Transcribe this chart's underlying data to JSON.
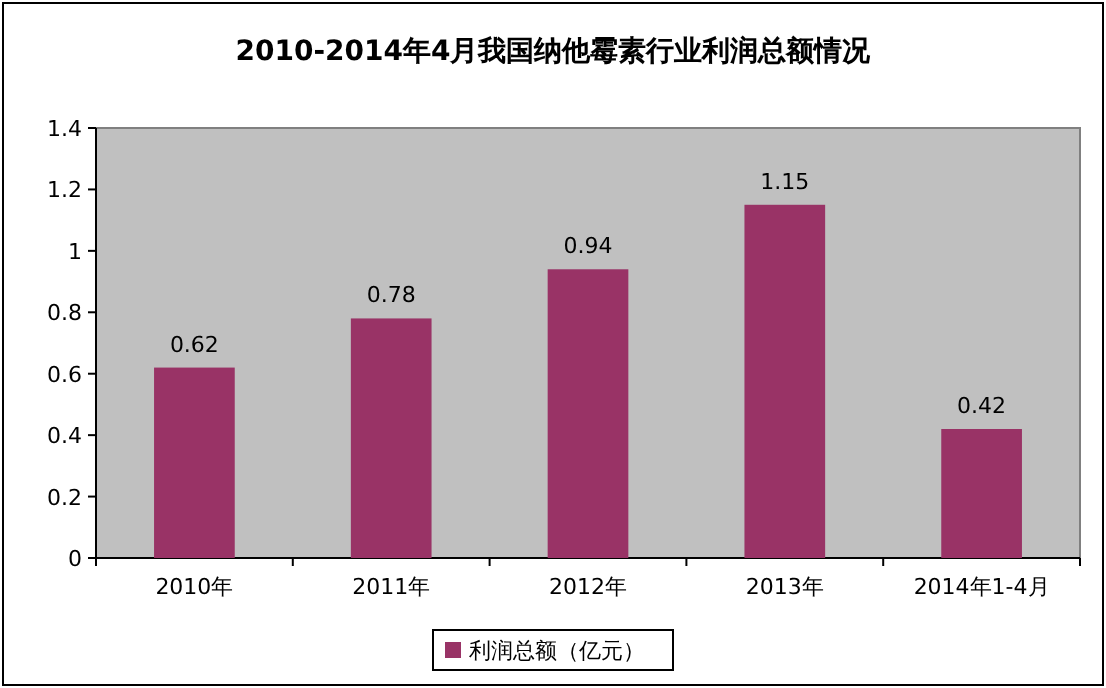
{
  "chart_data": {
    "type": "bar",
    "title": "2010-2014年4月我国纳他霉素行业利润总额情况",
    "categories": [
      "2010年",
      "2011年",
      "2012年",
      "2013年",
      "2014年1-4月"
    ],
    "series": [
      {
        "name": "利润总额（亿元）",
        "color": "#993366",
        "values": [
          0.62,
          0.78,
          0.94,
          1.15,
          0.42
        ]
      }
    ],
    "ylim": [
      0,
      1.4
    ],
    "yticks": [
      0,
      0.2,
      0.4,
      0.6,
      0.8,
      1,
      1.2,
      1.4
    ],
    "data_labels": true,
    "legend": "bottom"
  }
}
